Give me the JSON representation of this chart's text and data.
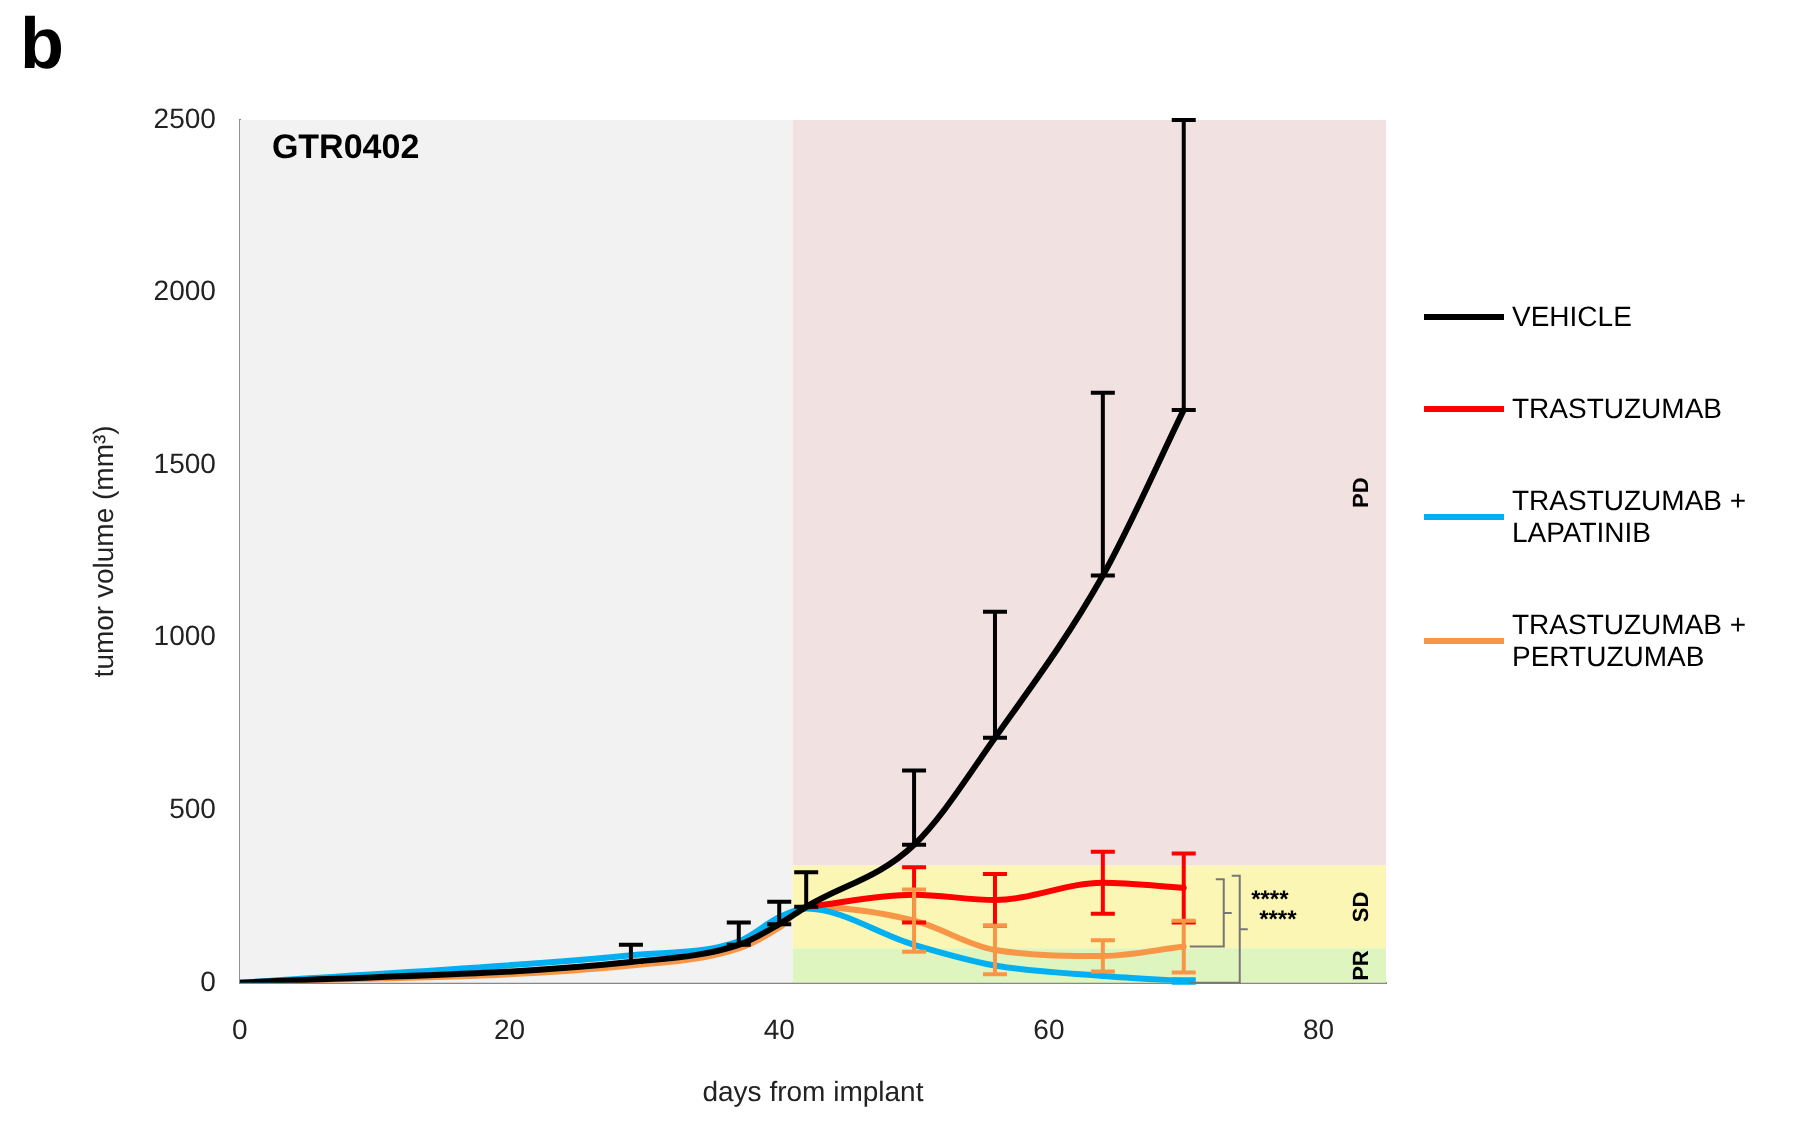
{
  "chart_data": {
    "type": "line",
    "title": "GTR0402",
    "xlabel": "days from implant",
    "ylabel": "tumor volume (mm³)",
    "xlim": [
      0,
      85
    ],
    "xticks": [
      0,
      20,
      40,
      60,
      80
    ],
    "ylim": [
      0,
      2500
    ],
    "yticks": [
      0,
      500,
      1000,
      1500,
      2000,
      2500
    ],
    "x": [
      0,
      29,
      37,
      40,
      42,
      50,
      56,
      64,
      70
    ],
    "series": [
      {
        "name": "VEHICLE",
        "color": "#000000",
        "values": [
          0,
          60,
          110,
          170,
          220,
          400,
          710,
          1180,
          1660
        ],
        "errors": [
          null,
          [
            60,
            110
          ],
          [
            110,
            175
          ],
          [
            170,
            235
          ],
          [
            220,
            320
          ],
          [
            400,
            615
          ],
          [
            710,
            1075
          ],
          [
            1180,
            1710
          ],
          [
            1660,
            2500
          ]
        ]
      },
      {
        "name": "TRASTUZUMAB",
        "color": "#ff0000",
        "values": [
          null,
          null,
          null,
          null,
          220,
          255,
          240,
          290,
          275
        ],
        "errors": [
          null,
          null,
          null,
          null,
          null,
          80,
          75,
          90,
          100
        ]
      },
      {
        "name": "TRASTUZUMAB + LAPATINIB",
        "color": "#00b0f0",
        "values": [
          0,
          80,
          120,
          190,
          215,
          110,
          50,
          20,
          5
        ],
        "errors": [
          null,
          null,
          null,
          null,
          null,
          null,
          null,
          null,
          5
        ]
      },
      {
        "name": "TRASTUZUMAB + PERTUZUMAB",
        "color": "#f79646",
        "values": [
          0,
          50,
          100,
          160,
          220,
          180,
          95,
          78,
          105
        ],
        "errors": [
          null,
          null,
          null,
          null,
          null,
          90,
          70,
          45,
          75
        ]
      }
    ],
    "bands": [
      {
        "axis": "x",
        "from": 0,
        "to": 41,
        "color": "#f2f2f2"
      },
      {
        "axis": "y",
        "from": 340,
        "to": 2500,
        "label": "PD",
        "color": "#f2e1e1"
      },
      {
        "axis": "y",
        "from": 100,
        "to": 340,
        "label": "SD",
        "color": "#fcf6b4"
      },
      {
        "axis": "y",
        "from": 0,
        "to": 100,
        "label": "PR",
        "color": "#dff5c0"
      }
    ],
    "annotations": [
      "b",
      {
        "text": "****",
        "x": 70,
        "y": 105
      },
      "****"
    ],
    "legend": "right",
    "grid": false,
    "marker": "none",
    "line_style": "solid"
  }
}
